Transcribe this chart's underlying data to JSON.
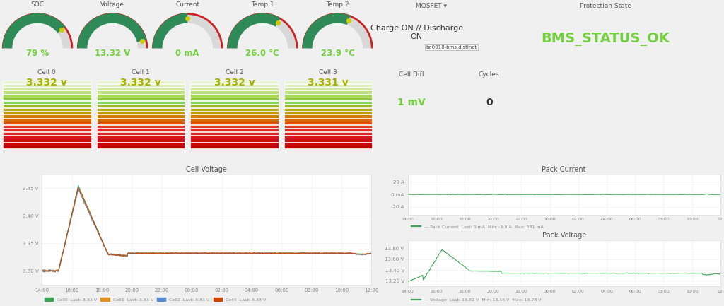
{
  "fig_bg": "#f0f0f0",
  "panel_bg": "#ffffff",
  "gauges": [
    {
      "title": "SOC",
      "value": "79 %",
      "percent": 0.79,
      "gauge_color": "#2e8b57",
      "dot_color": "#cccc00"
    },
    {
      "title": "Voltage",
      "value": "13.32 V",
      "percent": 0.92,
      "gauge_color": "#2e8b57",
      "dot_color": "#cccc00"
    },
    {
      "title": "Current",
      "value": "0 mA",
      "percent": 0.5,
      "gauge_color": "#2e8b57",
      "dot_color": "#cccc00"
    },
    {
      "title": "Temp 1",
      "value": "26.0 °C",
      "percent": 0.67,
      "gauge_color": "#2e8b57",
      "dot_color": "#cccc00"
    },
    {
      "title": "Temp 2",
      "value": "23.9 °C",
      "percent": 0.62,
      "gauge_color": "#2e8b57",
      "dot_color": "#cccc00"
    }
  ],
  "cells": [
    {
      "title": "Cell 0",
      "value": "3.332 v"
    },
    {
      "title": "Cell 1",
      "value": "3.332 v"
    },
    {
      "title": "Cell 2",
      "value": "3.332 v"
    },
    {
      "title": "Cell 3",
      "value": "3.331 v"
    }
  ],
  "cell_diff_title": "Cell Diff",
  "cell_diff_value": "1 mV",
  "cycles_title": "Cycles",
  "cycles_value": "0",
  "mosfet_title": "MOSFET ▾",
  "mosfet_value": "Charge ON // Discharge\nON",
  "mosfet_tooltip": "ba0018-bms.distinct",
  "prot_title": "Protection State",
  "prot_value": "BMS_STATUS_OK",
  "prot_color": "#73d13d",
  "bar_colors": [
    "#e8f5d0",
    "#dff0bb",
    "#d0e89a",
    "#bde07a",
    "#a8d858",
    "#8dc83a",
    "#7dda58",
    "#9ab820",
    "#b4aa10",
    "#c89800",
    "#d08000",
    "#d86800",
    "#e05000",
    "#e43828",
    "#e42828",
    "#e02020",
    "#d81818",
    "#d01010",
    "#c80808",
    "#c00000"
  ],
  "cv_title": "Cell Voltage",
  "cv_yticks": [
    3.45,
    3.4,
    3.35,
    3.3
  ],
  "cv_ytick_labels": [
    "3.45 V",
    "3.40 V",
    "3.35 V",
    "3.30 V"
  ],
  "cv_ylim": [
    3.275,
    3.475
  ],
  "cv_xticks": [
    "14:00",
    "16:00",
    "18:00",
    "20:00",
    "22:00",
    "00:00",
    "02:00",
    "04:00",
    "06:00",
    "08:00",
    "10:00",
    "12:00"
  ],
  "cv_legend": [
    {
      "label": "Cell0  Last: 3.33 V",
      "color": "#3da455"
    },
    {
      "label": "Cell1  Last: 3.33 V",
      "color": "#e09020"
    },
    {
      "label": "Cell2  Last: 3.33 V",
      "color": "#5588cc"
    },
    {
      "label": "Cell4  Last: 3.33 V",
      "color": "#cc4400"
    }
  ],
  "pc_title": "Pack Current",
  "pc_yticks": [
    20,
    0,
    -20
  ],
  "pc_ytick_labels": [
    "20 A",
    "0 mA",
    "-20 A"
  ],
  "pc_ylim": [
    -32,
    32
  ],
  "pc_xticks": [
    "14:00",
    "16:00",
    "18:00",
    "20:00",
    "22:00",
    "00:00",
    "02:00",
    "04:00",
    "06:00",
    "08:00",
    "10:00",
    "12:"
  ],
  "pc_legend": "— Pack Current  Last: 0 mA  Min: -3.0 A  Max: 581 mA",
  "pv_title": "Pack Voltage",
  "pv_yticks": [
    13.8,
    13.6,
    13.4,
    13.2
  ],
  "pv_ytick_labels": [
    "13.80 V",
    "13.60 V",
    "13.40 V",
    "13.20 V"
  ],
  "pv_ylim": [
    13.1,
    13.95
  ],
  "pv_xticks": [
    "14:00",
    "16:00",
    "18:00",
    "20:00",
    "22:00",
    "00:00",
    "02:00",
    "04:00",
    "06:00",
    "08:00",
    "10:00",
    "12:"
  ],
  "pv_legend": "— Voltage  Last: 13.32 V  Min: 13.16 V  Max: 13.78 V",
  "line_color": "#3da455",
  "text_dark": "#555555",
  "text_light": "#888888"
}
